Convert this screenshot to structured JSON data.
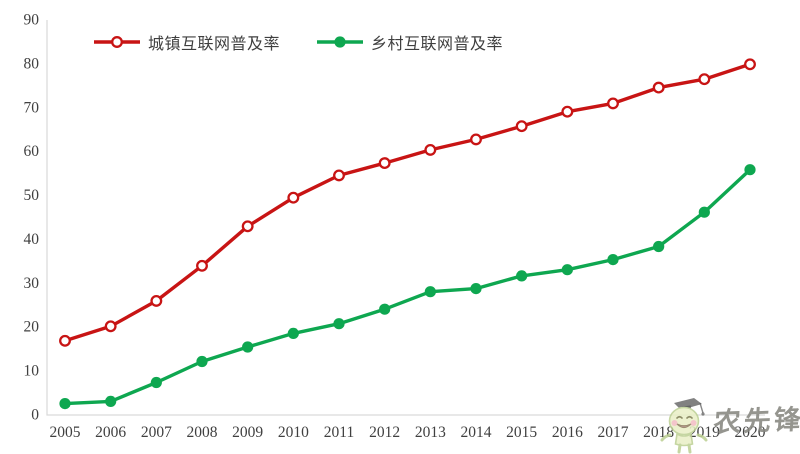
{
  "chart_data": {
    "type": "line",
    "title": "",
    "xlabel": "",
    "ylabel": "",
    "x": [
      "2005",
      "2006",
      "2007",
      "2008",
      "2009",
      "2010",
      "2011",
      "2012",
      "2013",
      "2014",
      "2015",
      "2016",
      "2017",
      "2018",
      "2019",
      "2020"
    ],
    "series": [
      {
        "id": "urban",
        "name": "城镇互联网普及率",
        "color": "#c81414",
        "marker": "open-circle",
        "values": [
          16.9,
          20.2,
          26.0,
          34.0,
          43.0,
          49.5,
          54.6,
          57.4,
          60.4,
          62.8,
          65.8,
          69.1,
          71.0,
          74.6,
          76.5,
          79.9
        ]
      },
      {
        "id": "rural",
        "name": "乡村互联网普及率",
        "color": "#0ea750",
        "marker": "filled-circle",
        "values": [
          2.6,
          3.1,
          7.4,
          12.2,
          15.5,
          18.6,
          20.8,
          24.1,
          28.1,
          28.8,
          31.7,
          33.1,
          35.4,
          38.4,
          46.2,
          55.9
        ]
      }
    ],
    "ylim": [
      0,
      90
    ],
    "yticks": [
      0,
      10,
      20,
      30,
      40,
      50,
      60,
      70,
      80,
      90
    ],
    "grid": false,
    "legend_position": "top-left",
    "axis_color": "#d9d9d9",
    "tick_label_color": "#404040"
  },
  "watermark": {
    "text": "农先锋",
    "mascot": "graduate-mascot"
  }
}
